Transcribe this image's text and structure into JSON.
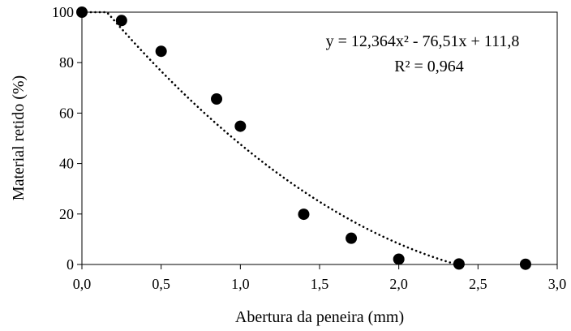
{
  "chart_data": {
    "type": "scatter",
    "xlabel": "Abertura da peneira (mm)",
    "ylabel": "Material retido (%)",
    "xlim": [
      0,
      3
    ],
    "ylim": [
      0,
      100
    ],
    "x_ticks": [
      "0,0",
      "0,5",
      "1,0",
      "1,5",
      "2,0",
      "2,5",
      "3,0"
    ],
    "y_ticks": [
      "0",
      "20",
      "40",
      "60",
      "80",
      "100"
    ],
    "grid": false,
    "points": [
      {
        "x": 0.0,
        "y": 100
      },
      {
        "x": 0.25,
        "y": 96.7
      },
      {
        "x": 0.5,
        "y": 84.5
      },
      {
        "x": 0.85,
        "y": 65.6
      },
      {
        "x": 1.0,
        "y": 54.8
      },
      {
        "x": 1.4,
        "y": 19.9
      },
      {
        "x": 1.7,
        "y": 10.4
      },
      {
        "x": 2.0,
        "y": 2.1
      },
      {
        "x": 2.38,
        "y": 0.2
      },
      {
        "x": 2.8,
        "y": 0.1
      }
    ],
    "trendline": {
      "type": "polynomial",
      "style": "dotted",
      "coefficients": {
        "a": 12.364,
        "b": -76.51,
        "c": 111.8
      },
      "x_range": [
        0,
        2.35
      ]
    },
    "annotations": {
      "equation_text": "y = 12,364x² - 76,51x + 111,8",
      "r2_text": "R² = 0,964"
    },
    "colors": {
      "marker": "#000000",
      "axis": "#000000",
      "trendline": "#000000"
    }
  }
}
